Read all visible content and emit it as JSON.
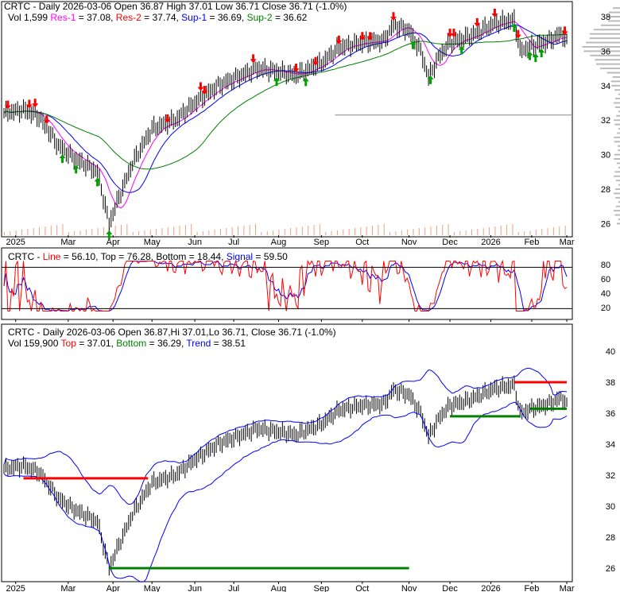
{
  "panel1": {
    "l1": "CRTC - Daily 2026-03-06 Open 36.87  High 37.01  Low 36.71  Close 36.71 (-1.0%)",
    "vol": "Vol 1,599 ",
    "res1": "Res-1",
    "res1v": " = 37.08, ",
    "res2": "Res-2",
    "res2v": " = 37.74, ",
    "sup1": "Sup-1",
    "sup1v": " = 36.69, ",
    "sup2": "Sup-2",
    "sup2v": " = 36.62"
  },
  "panel2": {
    "a": "CRTC - ",
    "line": "Line",
    "b": " = 56.10, Top = 76.28, Bottom = 18.44, ",
    "signal": "Signal",
    "c": " = 59.50"
  },
  "panel3": {
    "l1": "CRTC - Daily 2026-03-06 Open 36.87,Hi 37.01,Lo 36.71, Close 36.71 (-1.0%)",
    "vol": "Vol 159,900 ",
    "top": "Top",
    "topv": " = 37.01, ",
    "bottom": "Bottom",
    "bottomv": " = 36.29, ",
    "trend": "Trend",
    "trendv": " = 38.51"
  },
  "colors": {
    "res1": "#ff00ff",
    "res2": "#ff0000",
    "sup1": "#0000ff",
    "sup2": "#008000",
    "up": "#00a000",
    "down": "#ff0000"
  },
  "chart_data": {
    "type": "line",
    "title": "CRTC - Daily",
    "x_ticks": [
      {
        "d": 6,
        "label": "2025"
      },
      {
        "d": 33,
        "label": "Mar"
      },
      {
        "d": 56,
        "label": "Apr"
      },
      {
        "d": 76,
        "label": "May"
      },
      {
        "d": 98,
        "label": "Jun"
      },
      {
        "d": 118,
        "label": "Jul"
      },
      {
        "d": 141,
        "label": "Aug"
      },
      {
        "d": 163,
        "label": "Sep"
      },
      {
        "d": 184,
        "label": "Oct"
      },
      {
        "d": 208,
        "label": "Nov"
      },
      {
        "d": 229,
        "label": "Dec"
      },
      {
        "d": 250,
        "label": "2026"
      },
      {
        "d": 271,
        "label": "Feb"
      },
      {
        "d": 289,
        "label": "Mar"
      }
    ],
    "price_key": [
      [
        0,
        32.4
      ],
      [
        10,
        32.6
      ],
      [
        18,
        32.2
      ],
      [
        28,
        30.5
      ],
      [
        36,
        29.8
      ],
      [
        48,
        29.0
      ],
      [
        54,
        26.0
      ],
      [
        58,
        27.2
      ],
      [
        66,
        29.5
      ],
      [
        76,
        31.5
      ],
      [
        88,
        32.0
      ],
      [
        98,
        33.0
      ],
      [
        110,
        34.0
      ],
      [
        118,
        34.4
      ],
      [
        130,
        35.0
      ],
      [
        141,
        34.8
      ],
      [
        150,
        34.6
      ],
      [
        163,
        35.3
      ],
      [
        172,
        36.2
      ],
      [
        184,
        36.5
      ],
      [
        195,
        36.6
      ],
      [
        200,
        37.5
      ],
      [
        208,
        37.2
      ],
      [
        214,
        36.0
      ],
      [
        218,
        34.5
      ],
      [
        224,
        35.8
      ],
      [
        229,
        36.5
      ],
      [
        238,
        36.8
      ],
      [
        245,
        37.2
      ],
      [
        252,
        37.6
      ],
      [
        262,
        37.8
      ],
      [
        265,
        36.0
      ],
      [
        271,
        36.3
      ],
      [
        280,
        36.6
      ],
      [
        286,
        37.0
      ],
      [
        289,
        36.71
      ]
    ],
    "p1_yticks": [
      38,
      36,
      34,
      32,
      30,
      28,
      26
    ],
    "p2_yticks": [
      80,
      60,
      40,
      20
    ],
    "p3_yticks": [
      40,
      38,
      36,
      34,
      32,
      30,
      28,
      26
    ],
    "down_arrows": [
      2,
      13,
      16,
      22,
      84,
      101,
      103,
      128,
      150,
      160,
      172,
      184,
      188,
      200,
      229,
      231,
      243,
      252,
      264,
      288
    ],
    "up_arrows": [
      30,
      37,
      48,
      54,
      140,
      155,
      210,
      219,
      235,
      262,
      270,
      273,
      276
    ],
    "levels": {
      "res1": 37.08,
      "res2": 37.74,
      "sup1": 36.69,
      "sup2": 36.62,
      "line": 56.1,
      "top": 76.28,
      "bottom": 18.44,
      "signal": 59.5,
      "trend_top": 37.01,
      "trend_bottom": 36.29,
      "trend": 38.51
    }
  }
}
